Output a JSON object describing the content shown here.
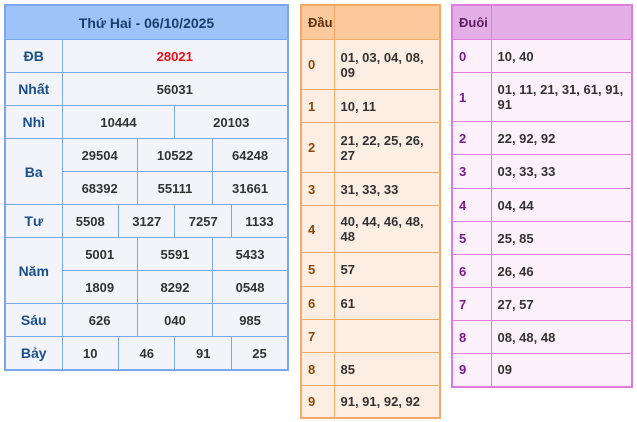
{
  "results": {
    "title": "Thứ Hai - 06/10/2025",
    "colors": {
      "special": "#e8101a",
      "accent": "#9ec3f9"
    },
    "prizes": [
      {
        "label": "ĐB",
        "rows": [
          [
            "28021"
          ]
        ]
      },
      {
        "label": "Nhất",
        "rows": [
          [
            "56031"
          ]
        ]
      },
      {
        "label": "Nhì",
        "rows": [
          [
            "10444",
            "20103"
          ]
        ]
      },
      {
        "label": "Ba",
        "rows": [
          [
            "29504",
            "10522",
            "64248"
          ],
          [
            "68392",
            "55111",
            "31661"
          ]
        ]
      },
      {
        "label": "Tư",
        "rows": [
          [
            "5508",
            "3127",
            "7257",
            "1133"
          ]
        ]
      },
      {
        "label": "Năm",
        "rows": [
          [
            "5001",
            "5591",
            "5433"
          ],
          [
            "1809",
            "8292",
            "0548"
          ]
        ]
      },
      {
        "label": "Sáu",
        "rows": [
          [
            "626",
            "040",
            "985"
          ]
        ]
      },
      {
        "label": "Bảy",
        "rows": [
          [
            "10",
            "46",
            "91",
            "25"
          ]
        ]
      }
    ]
  },
  "dau": {
    "header": "Đầu",
    "rows": [
      {
        "k": "0",
        "v": "01, 03, 04, 08, 09"
      },
      {
        "k": "1",
        "v": "10, 11"
      },
      {
        "k": "2",
        "v": "21, 22, 25, 26, 27"
      },
      {
        "k": "3",
        "v": "31, 33, 33"
      },
      {
        "k": "4",
        "v": "40, 44, 46, 48, 48"
      },
      {
        "k": "5",
        "v": "57"
      },
      {
        "k": "6",
        "v": "61"
      },
      {
        "k": "7",
        "v": ""
      },
      {
        "k": "8",
        "v": "85"
      },
      {
        "k": "9",
        "v": "91, 91, 92, 92"
      }
    ]
  },
  "duoi": {
    "header": "Đuôi",
    "rows": [
      {
        "k": "0",
        "v": "10, 40"
      },
      {
        "k": "1",
        "v": "01, 11, 21, 31, 61, 91, 91"
      },
      {
        "k": "2",
        "v": "22, 92, 92"
      },
      {
        "k": "3",
        "v": "03, 33, 33"
      },
      {
        "k": "4",
        "v": "04, 44"
      },
      {
        "k": "5",
        "v": "25, 85"
      },
      {
        "k": "6",
        "v": "26, 46"
      },
      {
        "k": "7",
        "v": "27, 57"
      },
      {
        "k": "8",
        "v": "08, 48, 48"
      },
      {
        "k": "9",
        "v": "09"
      }
    ]
  }
}
